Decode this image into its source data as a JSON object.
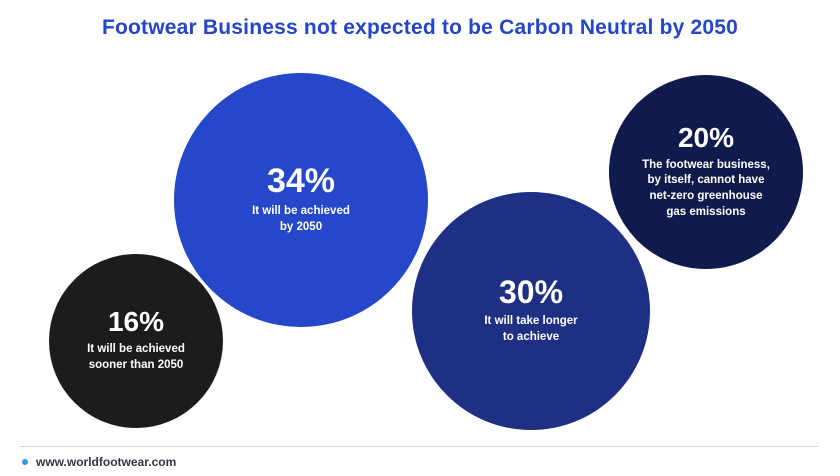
{
  "chart_data": {
    "type": "bubble",
    "title": "Footwear Business not expected to be Carbon Neutral by 2050",
    "series": [
      {
        "label": "It will be achieved\nsooner than 2050",
        "value": 16,
        "display": "16%",
        "color": "#1c1c1c"
      },
      {
        "label": "It will be achieved\nby 2050",
        "value": 34,
        "display": "34%",
        "color": "#2448c9"
      },
      {
        "label": "It will take longer\nto achieve",
        "value": 30,
        "display": "30%",
        "color": "#1e2f84"
      },
      {
        "label": "The footwear business,\nby itself, cannot have\nnet-zero greenhouse\ngas emissions",
        "value": 20,
        "display": "20%",
        "color": "#101b4d"
      }
    ]
  },
  "footer": {
    "source": "www.worldfootwear.com",
    "dot_color": "#2d9cdb"
  }
}
